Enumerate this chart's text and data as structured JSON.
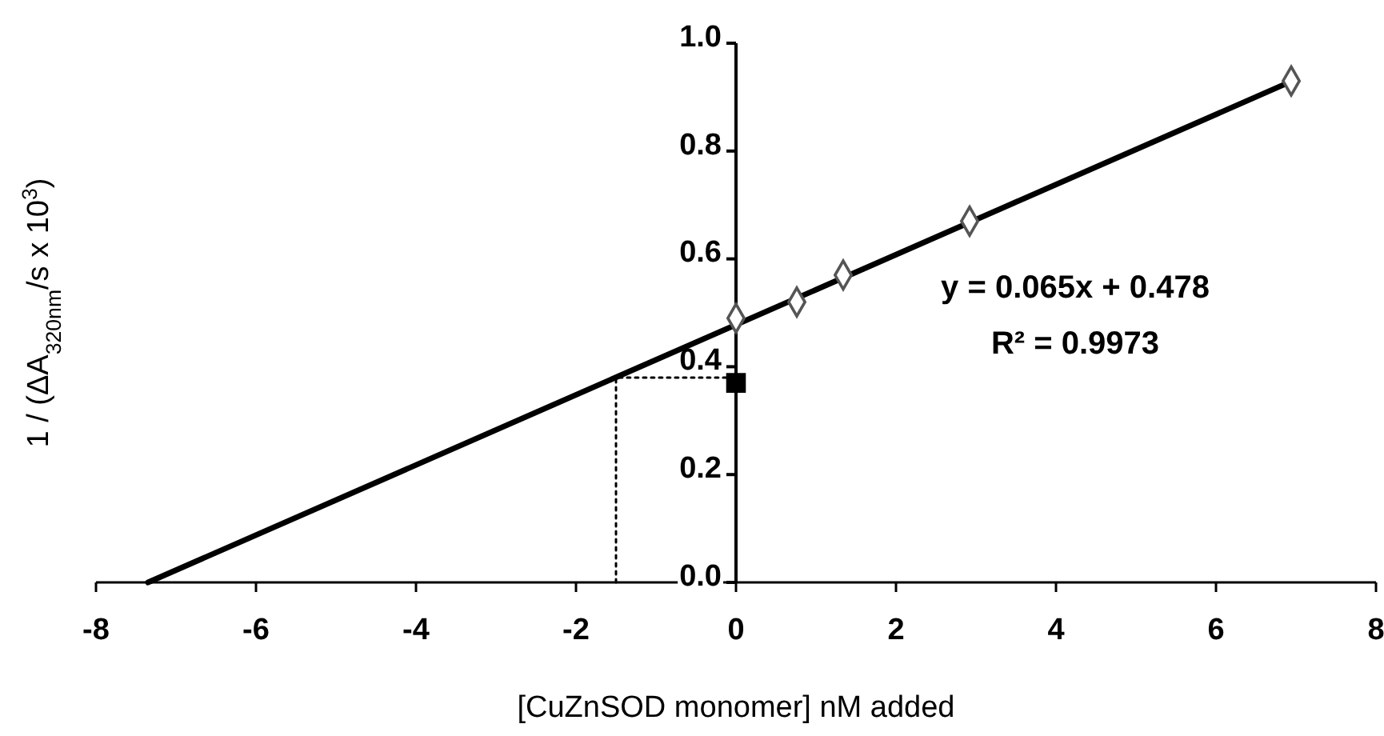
{
  "chart_data": {
    "type": "scatter",
    "xlabel": "[CuZnSOD monomer] nM added",
    "ylabel": "1 / (ΔA$_{320nm}$/s x 10$^{3}$)",
    "xlim": [
      -8,
      8
    ],
    "xticks": [
      -8,
      -6,
      -4,
      -2,
      0,
      2,
      4,
      6,
      8
    ],
    "ylim": [
      0,
      1
    ],
    "yticks": [
      {
        "value": 0,
        "label": "0.0"
      },
      0.2,
      0.4,
      0.6,
      0.8,
      {
        "value": 1,
        "label": "1.0"
      }
    ],
    "grid": false,
    "series": [
      {
        "type": "line",
        "color": "#000000",
        "x": [
          -7.35,
          7
        ],
        "values": [
          0,
          0.933
        ],
        "marker": "none",
        "line_style": "solid"
      },
      {
        "type": "line",
        "color": "#000000",
        "x": [
          -1.5,
          -1.5,
          0
        ],
        "values": [
          0,
          0.38,
          0.38
        ],
        "marker": "none",
        "line_style": "dotted"
      },
      {
        "color": "#555555",
        "x": [
          0,
          0.76,
          1.34,
          2.92,
          6.94
        ],
        "values": [
          0.49,
          0.52,
          0.57,
          0.67,
          0.93
        ],
        "marker": "diamond"
      },
      {
        "color": "#000000",
        "x": [
          0
        ],
        "values": [
          0.37
        ],
        "marker": "square"
      }
    ],
    "annotations": [
      "y = 0.065x + 0.478",
      "R² = 0.9973"
    ]
  }
}
